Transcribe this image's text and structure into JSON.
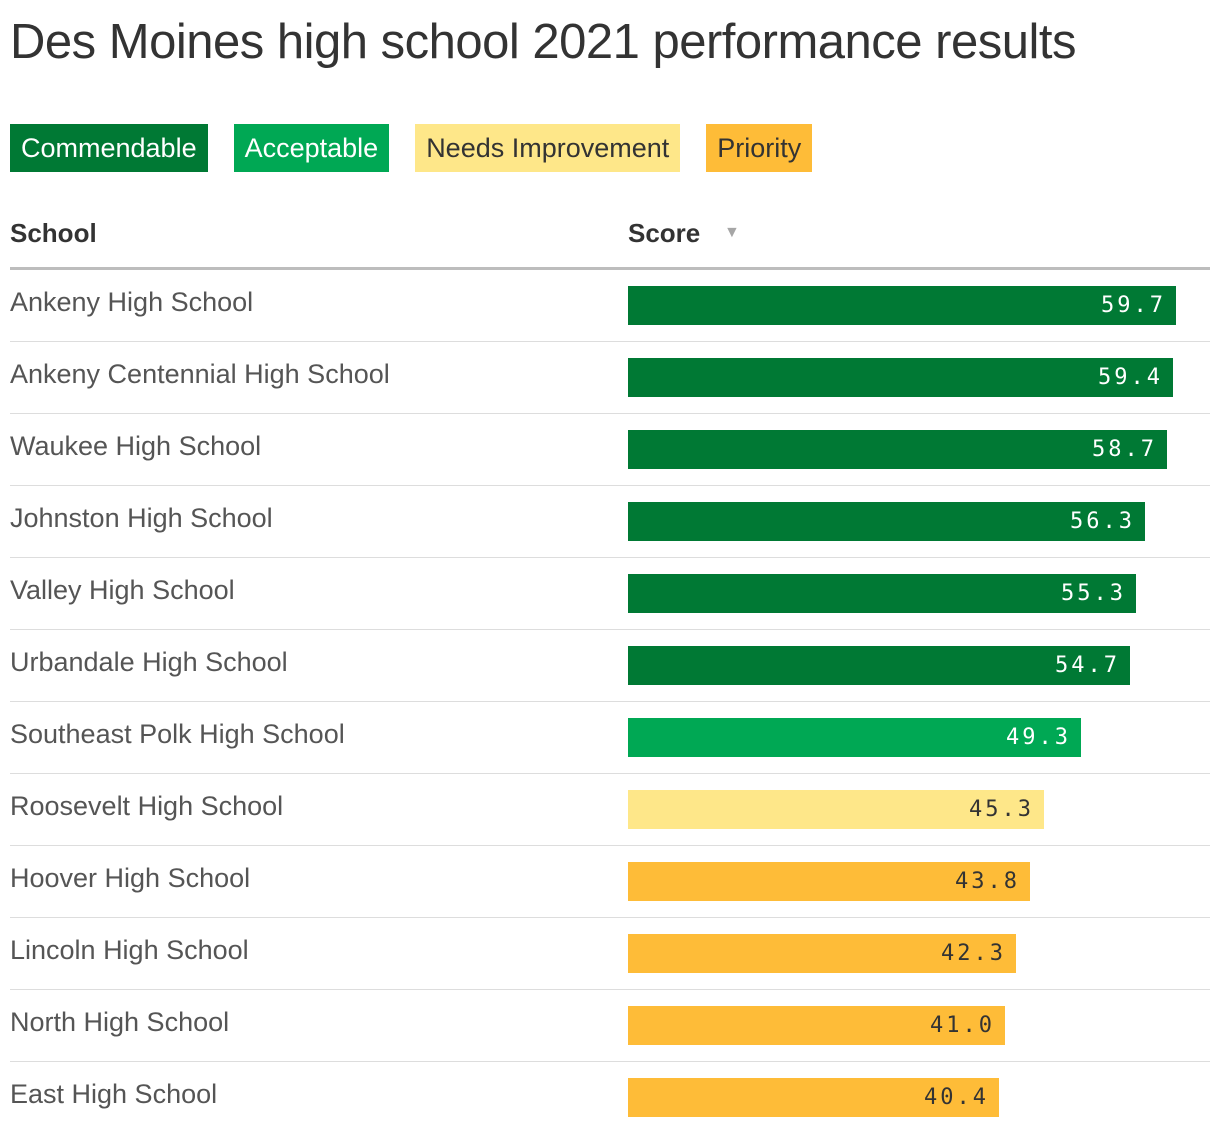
{
  "title": "Des Moines high school 2021 performance results",
  "legend": [
    {
      "label": "Commendable",
      "color": "#007934",
      "text_color": "#ffffff"
    },
    {
      "label": "Acceptable",
      "color": "#00a854",
      "text_color": "#ffffff"
    },
    {
      "label": "Needs Improvement",
      "color": "#fee789",
      "text_color": "#333333"
    },
    {
      "label": "Priority",
      "color": "#febc38",
      "text_color": "#333333"
    }
  ],
  "table": {
    "school_header": "School",
    "score_header": "Score",
    "sort_icon": "▼"
  },
  "chart_data": {
    "type": "bar",
    "orientation": "horizontal",
    "value_max": 60,
    "categories": [
      "Ankeny High School",
      "Ankeny Centennial High School",
      "Waukee High School",
      "Johnston High School",
      "Valley High School",
      "Urbandale High School",
      "Southeast Polk High School",
      "Roosevelt High School",
      "Hoover High School",
      "Lincoln High School",
      "North High School",
      "East High School"
    ],
    "values": [
      59.7,
      59.4,
      58.7,
      56.3,
      55.3,
      54.7,
      49.3,
      45.3,
      43.8,
      42.3,
      41.0,
      40.4
    ],
    "value_labels": [
      "59.7",
      "59.4",
      "58.7",
      "56.3",
      "55.3",
      "54.7",
      "49.3",
      "45.3",
      "43.8",
      "42.3",
      "41.0",
      "40.4"
    ],
    "ratings": [
      "Commendable",
      "Commendable",
      "Commendable",
      "Commendable",
      "Commendable",
      "Commendable",
      "Acceptable",
      "Needs Improvement",
      "Priority",
      "Priority",
      "Priority",
      "Priority"
    ]
  }
}
